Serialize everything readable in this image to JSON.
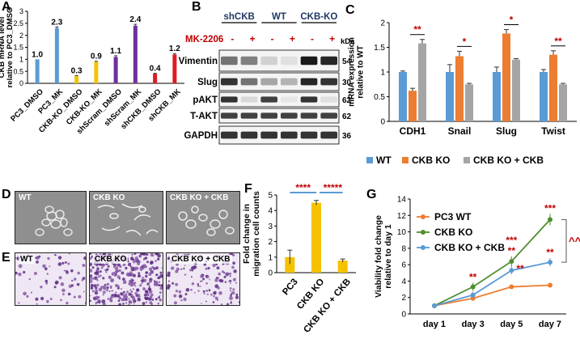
{
  "panels": {
    "a": "A",
    "b": "B",
    "c": "C",
    "d": "D",
    "e": "E",
    "f": "F",
    "g": "G"
  },
  "colors": {
    "blue": "#5b9bd5",
    "orange": "#ed7d31",
    "gray": "#a5a5a5",
    "yellow": "#f5c200",
    "purple": "#7030a0",
    "red": "#e01b24",
    "green": "#4e8f2e",
    "sig": "#c00000"
  },
  "chart_data": [
    {
      "id": "A",
      "type": "bar",
      "ylabel": "CKB mRNA level\nrelative to PC3_DMSO",
      "ylim": [
        0,
        3
      ],
      "yticks": [
        0,
        0.5,
        1,
        1.5,
        2,
        2.5,
        3
      ],
      "categories": [
        "PC3_DMSO",
        "PC3_MK",
        "CKB-KO_DMSO",
        "CKB-KO_MK",
        "shScram_DMSO",
        "shScram_MK",
        "shCKB_DMSO",
        "shCKB_MK"
      ],
      "values": [
        1.0,
        2.3,
        0.3,
        0.9,
        1.1,
        2.4,
        0.4,
        1.2
      ],
      "errors": [
        0.0,
        0.05,
        0.02,
        0.02,
        0.05,
        0.06,
        0.02,
        0.04
      ],
      "data_labels": [
        "1.0",
        "2.3",
        "0.3",
        "0.9",
        "1.1",
        "2.4",
        "0.4",
        "1.2"
      ],
      "bar_colors": [
        "blue",
        "blue",
        "yellow",
        "yellow",
        "purple",
        "purple",
        "red",
        "red"
      ]
    },
    {
      "id": "C",
      "type": "bar",
      "ylabel": "mRNA expression\nrelative to WT",
      "ylim": [
        0,
        2
      ],
      "yticks": [
        0,
        0.5,
        1,
        1.5,
        2
      ],
      "categories": [
        "CDH1",
        "Snail",
        "Slug",
        "Twist"
      ],
      "series": [
        {
          "name": "WT",
          "color": "blue",
          "values": [
            1.0,
            1.0,
            1.0,
            1.0
          ],
          "errors": [
            0.02,
            0.15,
            0.1,
            0.05
          ]
        },
        {
          "name": "CKB KO",
          "color": "orange",
          "values": [
            0.62,
            1.32,
            1.78,
            1.35
          ],
          "errors": [
            0.05,
            0.1,
            0.08,
            0.08
          ]
        },
        {
          "name": "CKB KO + CKB",
          "color": "gray",
          "values": [
            1.58,
            0.75,
            1.25,
            0.75
          ],
          "errors": [
            0.08,
            0.02,
            0.02,
            0.02
          ]
        }
      ],
      "significance": [
        "**",
        "*",
        "*",
        "**"
      ],
      "legend": "bottom"
    },
    {
      "id": "F",
      "type": "bar",
      "ylabel": "Fold change in\nmigration cell counts",
      "ylim": [
        0,
        5
      ],
      "yticks": [
        0,
        1,
        2,
        3,
        4,
        5
      ],
      "categories": [
        "PC3",
        "CKB KO",
        "CKB KO + CKB"
      ],
      "values": [
        1.0,
        4.5,
        0.78
      ],
      "errors": [
        0.45,
        0.15,
        0.1
      ],
      "significance": [
        "****",
        "*****"
      ]
    },
    {
      "id": "G",
      "type": "line",
      "ylabel": "Viability fold change\nrelative  to day 1",
      "ylim": [
        0,
        14
      ],
      "yticks": [
        0,
        2,
        4,
        6,
        8,
        10,
        12,
        14
      ],
      "categories": [
        "day 1",
        "day 3",
        "day 5",
        "day 7"
      ],
      "series": [
        {
          "name": "PC3 WT",
          "color": "orange",
          "values": [
            1.0,
            1.9,
            3.3,
            3.5
          ],
          "errors": [
            0.1,
            0.2,
            0.2,
            0.2
          ]
        },
        {
          "name": "CKB KO",
          "color": "green",
          "values": [
            1.0,
            3.3,
            6.4,
            11.5
          ],
          "errors": [
            0.1,
            0.5,
            0.6,
            0.7
          ]
        },
        {
          "name": "CKB KO + CKB",
          "color": "blue",
          "values": [
            1.0,
            2.3,
            5.3,
            6.3
          ],
          "errors": [
            0.1,
            0.4,
            0.5,
            0.5
          ]
        }
      ],
      "annotations": {
        "day3_top": "**",
        "day5_top": "**",
        "day5_mid": "**",
        "day7_top": "***",
        "day7_mid": "**",
        "day5_upper": "***",
        "bracket": "^^"
      },
      "legend": "top-left"
    }
  ],
  "blot": {
    "groups": [
      "shCKB",
      "WT",
      "CKB-KO"
    ],
    "treatment_label": "MK-2206",
    "treatment_signs": [
      "-",
      "+",
      "-",
      "+",
      "-",
      "+"
    ],
    "kda_label": "kDa",
    "rows": [
      {
        "name": "Vimentin",
        "kda": "54",
        "intensity": [
          0.55,
          0.5,
          0.18,
          0.12,
          0.9,
          0.85
        ]
      },
      {
        "name": "Slug",
        "kda": "30",
        "intensity": [
          0.8,
          0.55,
          0.35,
          0.3,
          0.85,
          0.8
        ]
      },
      {
        "name": "pAKT",
        "kda": "62",
        "intensity": [
          0.8,
          0.15,
          0.75,
          0.1,
          0.8,
          0.12
        ]
      },
      {
        "name": "T-AKT",
        "kda": "62",
        "intensity": [
          0.75,
          0.75,
          0.75,
          0.75,
          0.75,
          0.75
        ]
      },
      {
        "name": "GAPDH",
        "kda": "36",
        "intensity": [
          0.8,
          0.8,
          0.8,
          0.8,
          0.8,
          0.8
        ]
      }
    ]
  },
  "images": {
    "d": [
      "WT",
      "CKB KO",
      "CKB KO + CKB"
    ],
    "e": [
      "WT",
      "CKB KO",
      "CKB KO + CKB"
    ]
  }
}
